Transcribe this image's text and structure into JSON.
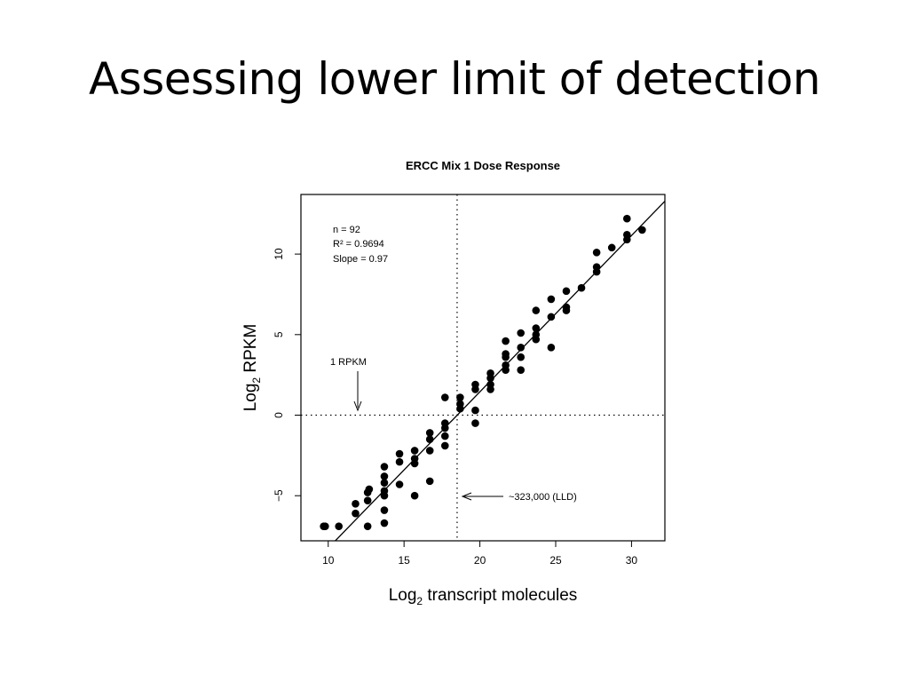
{
  "slide": {
    "title": "Assessing lower limit of detection"
  },
  "chart_data": {
    "type": "scatter",
    "title": "ERCC Mix 1 Dose Response",
    "xlabel": "Log",
    "xlabel_sub": "2",
    "xlabel_rest": " transcript molecules",
    "ylabel": "Log",
    "ylabel_sub": "2",
    "ylabel_rest": " RPKM",
    "xlim": [
      8.2,
      32.2
    ],
    "ylim": [
      -7.8,
      13.7
    ],
    "xticks": [
      10,
      15,
      20,
      25,
      30
    ],
    "yticks": [
      -5,
      0,
      5,
      10
    ],
    "stats": [
      "n = 92",
      "R² = 0.9694",
      "Slope = 0.97"
    ],
    "reference_lines": {
      "vertical_x": 18.5,
      "horizontal_y": 0
    },
    "annotations": [
      {
        "text": "1 RPKM"
      },
      {
        "text": "~323,000 (LLD)"
      }
    ],
    "fit_line": {
      "slope": 0.97,
      "intercept": -17.95
    },
    "series": [
      {
        "x": [
          9.8,
          9.7,
          10.7,
          11.8,
          11.8,
          12.6,
          12.6,
          12.6,
          12.7,
          13.7,
          13.7,
          13.7,
          13.7,
          13.7,
          13.7,
          13.7,
          14.7,
          14.7,
          14.7,
          15.7,
          15.7,
          15.7,
          15.7,
          16.7,
          16.7,
          16.7,
          16.7,
          17.7,
          17.7,
          17.7,
          17.7,
          17.7,
          18.7,
          18.7,
          18.7,
          19.7,
          19.7,
          19.7,
          19.7,
          20.7,
          20.7,
          20.7,
          20.7,
          21.7,
          21.7,
          21.7,
          21.7,
          21.7,
          22.7,
          22.7,
          22.7,
          22.7,
          23.7,
          23.7,
          23.7,
          23.7,
          24.7,
          24.7,
          24.7,
          25.7,
          25.7,
          25.7,
          26.7,
          27.7,
          27.7,
          27.7,
          28.7,
          29.7,
          29.7,
          29.7,
          30.7
        ],
        "y": [
          -6.9,
          -6.9,
          -6.9,
          -6.1,
          -5.5,
          -6.9,
          -5.3,
          -4.8,
          -4.6,
          -6.7,
          -5.9,
          -5.0,
          -4.7,
          -4.2,
          -3.8,
          -3.2,
          -4.3,
          -2.9,
          -2.4,
          -5.0,
          -3.0,
          -2.7,
          -2.2,
          -4.1,
          -2.2,
          -1.5,
          -1.1,
          -1.9,
          -1.3,
          -0.8,
          -0.5,
          1.1,
          0.4,
          0.7,
          1.1,
          -0.5,
          0.3,
          1.6,
          1.9,
          1.6,
          1.9,
          2.3,
          2.6,
          2.8,
          3.1,
          3.6,
          3.8,
          4.6,
          2.8,
          3.6,
          4.2,
          5.1,
          4.7,
          5.0,
          5.4,
          6.5,
          4.2,
          6.1,
          7.2,
          6.5,
          6.7,
          7.7,
          7.9,
          8.9,
          9.2,
          10.1,
          10.4,
          10.9,
          11.2,
          12.2,
          11.5
        ]
      }
    ]
  }
}
